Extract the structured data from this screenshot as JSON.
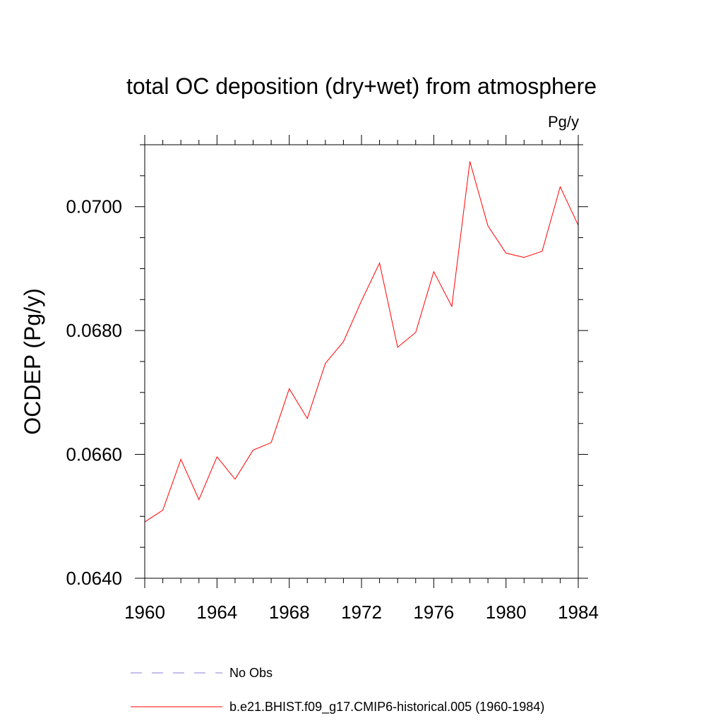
{
  "chart_data": {
    "type": "line",
    "title": "total OC deposition (dry+wet) from atmosphere",
    "units_label": "Pg/y",
    "ylabel": "OCDEP  (Pg/y)",
    "xlabel": "",
    "xlim": [
      1960,
      1984
    ],
    "ylim": [
      0.064,
      0.071
    ],
    "x_ticks": [
      1960,
      1964,
      1968,
      1972,
      1976,
      1980,
      1984
    ],
    "x_tick_labels": [
      "1960",
      "1964",
      "1968",
      "1972",
      "1976",
      "1980",
      "1984"
    ],
    "y_ticks": [
      0.064,
      0.066,
      0.068,
      0.07
    ],
    "y_tick_labels": [
      "0.0640",
      "0.0660",
      "0.0680",
      "0.0700"
    ],
    "grid": false,
    "legend_position": "bottom",
    "series": [
      {
        "name": "b.e21.BHIST.f09_g17.CMIP6-historical.005 (1960-1984)",
        "color": "#ff0000",
        "x": [
          1960,
          1961,
          1962,
          1963,
          1964,
          1965,
          1966,
          1967,
          1968,
          1969,
          1970,
          1971,
          1972,
          1973,
          1974,
          1975,
          1976,
          1977,
          1978,
          1979,
          1980,
          1981,
          1982,
          1983,
          1984
        ],
        "y": [
          0.06491,
          0.0651,
          0.06592,
          0.06527,
          0.06596,
          0.0656,
          0.06607,
          0.06619,
          0.06706,
          0.06658,
          0.06747,
          0.06782,
          0.06848,
          0.06909,
          0.06773,
          0.06797,
          0.06895,
          0.06839,
          0.07073,
          0.06969,
          0.06925,
          0.06918,
          0.06928,
          0.07032,
          0.0697
        ]
      }
    ],
    "legend": [
      {
        "label": "No Obs",
        "color": "#8a7fd0",
        "style": "dashed"
      },
      {
        "label": "b.e21.BHIST.f09_g17.CMIP6-historical.005 (1960-1984)",
        "color": "#ff0000",
        "style": "solid"
      }
    ]
  }
}
